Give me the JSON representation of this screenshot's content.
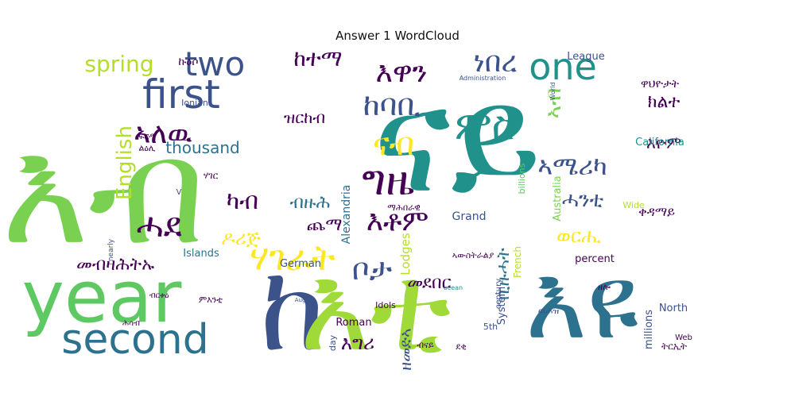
{
  "chart_data": {
    "type": "wordcloud",
    "title": "Answer 1 WordCloud",
    "words": [
      {
        "text": "እብ",
        "weight": 100,
        "color": "#7ad151"
      },
      {
        "text": "ናይ",
        "weight": 98,
        "color": "#21918c"
      },
      {
        "text": "year",
        "weight": 82,
        "color": "#5ec962"
      },
      {
        "text": "ከ",
        "weight": 70,
        "color": "#3b528b"
      },
      {
        "text": "እቲ",
        "weight": 72,
        "color": "#a0da39"
      },
      {
        "text": "እዩ",
        "weight": 60,
        "color": "#2c728e"
      },
      {
        "text": "second",
        "weight": 45,
        "color": "#2c728e"
      },
      {
        "text": "first",
        "weight": 40,
        "color": "#3b528b"
      },
      {
        "text": "one",
        "weight": 40,
        "color": "#21918c"
      },
      {
        "text": "two",
        "weight": 38,
        "color": "#3b528b"
      },
      {
        "text": "ምስ",
        "weight": 40,
        "color": "#21918c"
      },
      {
        "text": "ግዜ",
        "weight": 42,
        "color": "#440154"
      },
      {
        "text": "ሃገራት",
        "weight": 38,
        "color": "#fde725"
      },
      {
        "text": "ሓደ",
        "weight": 36,
        "color": "#440154"
      },
      {
        "text": "ናብ",
        "weight": 34,
        "color": "#fde725"
      },
      {
        "text": "ከባቢ",
        "weight": 34,
        "color": "#3b528b"
      },
      {
        "text": "ኣለዉ",
        "weight": 32,
        "color": "#440154"
      },
      {
        "text": "ነበረ",
        "weight": 30,
        "color": "#3b528b"
      },
      {
        "text": "እዋን",
        "weight": 30,
        "color": "#440154"
      },
      {
        "text": "ኣሜሪካ",
        "weight": 30,
        "color": "#3b528b"
      },
      {
        "text": "ቦታ",
        "weight": 36,
        "color": "#3b528b"
      },
      {
        "text": "እቶም",
        "weight": 32,
        "color": "#440154"
      },
      {
        "text": "spring",
        "weight": 26,
        "color": "#b5de2b"
      },
      {
        "text": "ከተማ",
        "weight": 26,
        "color": "#440154"
      },
      {
        "text": "English",
        "weight": 24,
        "color": "#b5de2b"
      },
      {
        "text": "thousand",
        "weight": 20,
        "color": "#2c728e"
      },
      {
        "text": "ካብ",
        "weight": 28,
        "color": "#440154"
      },
      {
        "text": "ብዙሕ",
        "weight": 20,
        "color": "#2c728e"
      },
      {
        "text": "ጨማ",
        "weight": 20,
        "color": "#440154"
      },
      {
        "text": "ዶሪጅ",
        "weight": 22,
        "color": "#fde725"
      },
      {
        "text": "መብዛሕትኡ",
        "weight": 20,
        "color": "#440154"
      },
      {
        "text": "ዝርከብ",
        "weight": 18,
        "color": "#440154"
      },
      {
        "text": "መደበር",
        "weight": 20,
        "color": "#440154"
      },
      {
        "text": "እግሪ",
        "weight": 22,
        "color": "#440154"
      },
      {
        "text": "ወርሒ",
        "weight": 22,
        "color": "#fde725"
      },
      {
        "text": "ሓንቲ",
        "weight": 22,
        "color": "#3b528b"
      },
      {
        "text": "እዮም",
        "weight": 18,
        "color": "#440154"
      },
      {
        "text": "ክልተ",
        "weight": 20,
        "color": "#440154"
      },
      {
        "text": "ኣብ",
        "weight": 24,
        "color": "#7ad151"
      },
      {
        "text": "ዘመድኣ",
        "weight": 18,
        "color": "#3b528b"
      },
      {
        "text": "ቢዙሓት",
        "weight": 20,
        "color": "#2c728e"
      },
      {
        "text": "ቀዳማይ",
        "weight": 16,
        "color": "#440154"
      },
      {
        "text": "ዋህዮታት",
        "weight": 14,
        "color": "#440154"
      },
      {
        "text": "League",
        "weight": 12,
        "color": "#3b528b"
      },
      {
        "text": "California",
        "weight": 12,
        "color": "#21918c"
      },
      {
        "text": "Australia",
        "weight": 12,
        "color": "#7ad151"
      },
      {
        "text": "Alexandria",
        "weight": 13,
        "color": "#2c728e"
      },
      {
        "text": "Lodges",
        "weight": 14,
        "color": "#b5de2b"
      },
      {
        "text": "Grand",
        "weight": 13,
        "color": "#3b528b"
      },
      {
        "text": "German",
        "weight": 12,
        "color": "#3b528b"
      },
      {
        "text": "Islands",
        "weight": 12,
        "color": "#2c728e"
      },
      {
        "text": "Roman",
        "weight": 12,
        "color": "#440154"
      },
      {
        "text": "System",
        "weight": 12,
        "color": "#3b528b"
      },
      {
        "text": "percent",
        "weight": 12,
        "color": "#440154"
      },
      {
        "text": "North",
        "weight": 12,
        "color": "#3b528b"
      },
      {
        "text": "millions",
        "weight": 12,
        "color": "#3b528b"
      },
      {
        "text": "French",
        "weight": 11,
        "color": "#b5de2b"
      },
      {
        "text": "billions",
        "weight": 10,
        "color": "#5ec962"
      },
      {
        "text": "century",
        "weight": 10,
        "color": "#3b528b"
      },
      {
        "text": "Idols",
        "weight": 10,
        "color": "#440154"
      },
      {
        "text": "Ionian",
        "weight": 10,
        "color": "#3b528b"
      },
      {
        "text": "Wide",
        "weight": 10,
        "color": "#b5de2b"
      },
      {
        "text": "5th",
        "weight": 10,
        "color": "#3b528b"
      },
      {
        "text": "day",
        "weight": 10,
        "color": "#3b528b"
      },
      {
        "text": "Web",
        "weight": 9,
        "color": "#440154"
      },
      {
        "text": "World",
        "weight": 8,
        "color": "#3b528b"
      },
      {
        "text": "Administration",
        "weight": 8,
        "color": "#3b528b"
      },
      {
        "text": "nearly",
        "weight": 8,
        "color": "#3b528b"
      },
      {
        "text": "ocean",
        "weight": 7,
        "color": "#21918c"
      },
      {
        "text": "August",
        "weight": 6,
        "color": "#3b528b"
      },
      {
        "text": "V",
        "weight": 8,
        "color": "#3b528b"
      },
      {
        "text": "ዉሐዝ",
        "weight": 10,
        "color": "#3b528b"
      },
      {
        "text": "ሃገር",
        "weight": 10,
        "color": "#440154"
      },
      {
        "text": "ፍርዲ",
        "weight": 10,
        "color": "#440154"
      },
      {
        "text": "ልዕሊ",
        "weight": 10,
        "color": "#440154"
      },
      {
        "text": "ኩዕሶ",
        "weight": 12,
        "color": "#440154"
      },
      {
        "text": "ማሕበራዊ",
        "weight": 10,
        "color": "#440154"
      },
      {
        "text": "ኣውስትራልያ",
        "weight": 10,
        "color": "#440154"
      },
      {
        "text": "ብናይ",
        "weight": 10,
        "color": "#440154"
      },
      {
        "text": "ደቂ",
        "weight": 10,
        "color": "#440154"
      },
      {
        "text": "ምእንቲ",
        "weight": 10,
        "color": "#440154"
      },
      {
        "text": "ሕሳብ",
        "weight": 9,
        "color": "#440154"
      },
      {
        "text": "ትርኢት",
        "weight": 10,
        "color": "#440154"
      },
      {
        "text": "ብርቱዕ",
        "weight": 9,
        "color": "#440154"
      },
      {
        "text": "ዘሎ",
        "weight": 9,
        "color": "#440154"
      }
    ]
  }
}
